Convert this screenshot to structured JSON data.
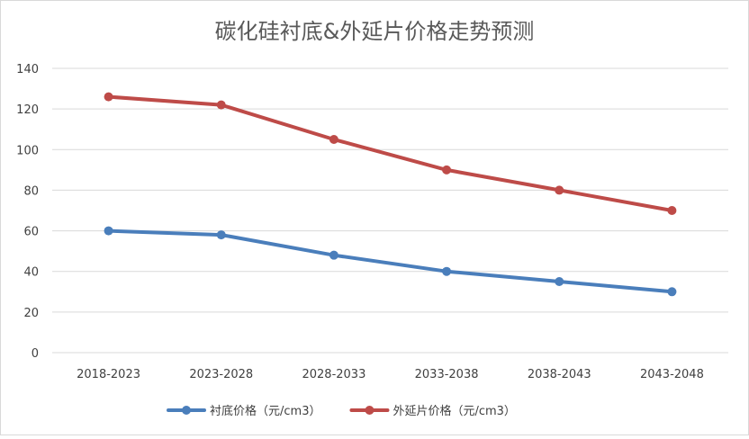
{
  "chart_data": {
    "type": "line",
    "title": "碳化硅衬底&外延片价格走势预测",
    "xlabel": "",
    "ylabel": "",
    "categories": [
      "2018-2023",
      "2023-2028",
      "2028-2033",
      "2033-2038",
      "2038-2043",
      "2043-2048"
    ],
    "ylim": [
      0,
      140
    ],
    "yticks": [
      0,
      20,
      40,
      60,
      80,
      100,
      120,
      140
    ],
    "grid": true,
    "legend_position": "bottom",
    "series": [
      {
        "name": "衬底价格（元/cm3）",
        "color": "#4a7ebb",
        "values": [
          60,
          58,
          48,
          40,
          35,
          30
        ]
      },
      {
        "name": "外延片价格（元/cm3）",
        "color": "#be4b48",
        "values": [
          126,
          122,
          105,
          90,
          80,
          70
        ]
      }
    ]
  }
}
